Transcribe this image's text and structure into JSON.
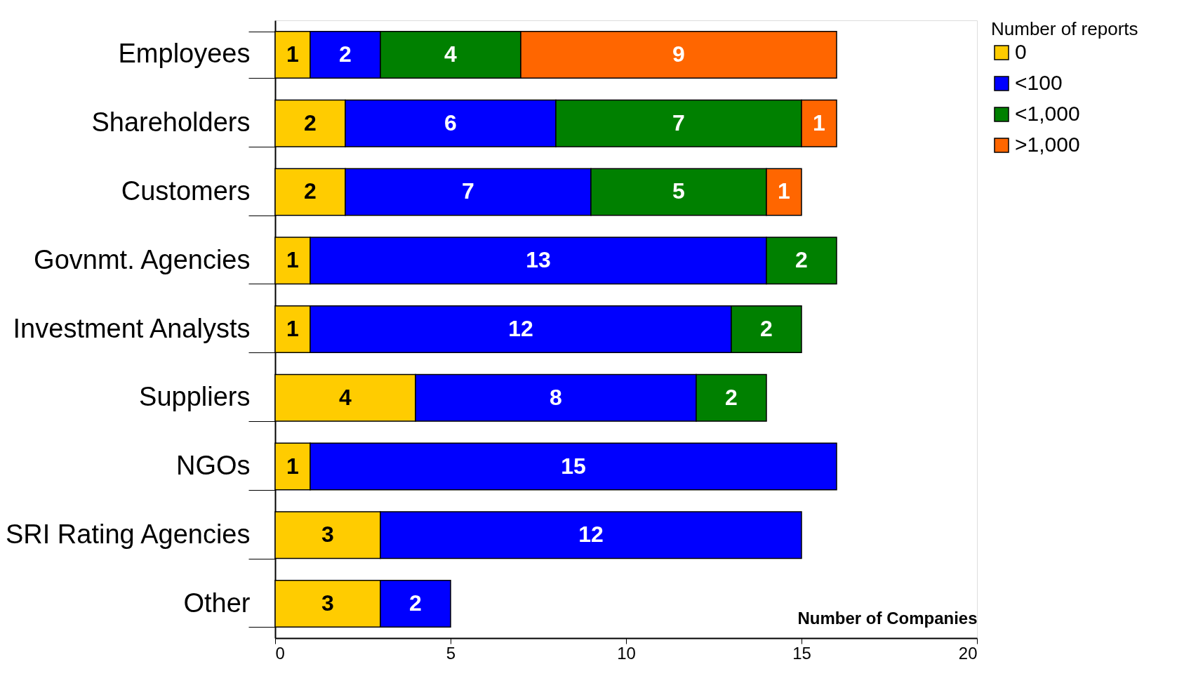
{
  "chart_data": {
    "type": "bar",
    "orientation": "horizontal",
    "stacked": true,
    "xlabel": "Number of Companies",
    "legend_title": "Number of reports",
    "legend": "right",
    "data_labels": true,
    "grid": false,
    "categories": [
      "Employees",
      "Shareholders",
      "Customers",
      "Govnmt. Agencies",
      "Investment Analysts",
      "Suppliers",
      "NGOs",
      "SRI Rating Agencies",
      "Other"
    ],
    "xlim": [
      0,
      20
    ],
    "xticks": [
      0,
      5,
      10,
      15,
      20
    ],
    "series": [
      {
        "name": "0",
        "color": "#ffcc00",
        "values": [
          1,
          2,
          2,
          1,
          1,
          4,
          1,
          3,
          3
        ]
      },
      {
        "name": "<100",
        "color": "#0000ff",
        "values": [
          2,
          6,
          7,
          13,
          12,
          8,
          15,
          12,
          2
        ]
      },
      {
        "name": "<1,000",
        "color": "#008000",
        "values": [
          4,
          7,
          5,
          2,
          2,
          2,
          null,
          null,
          null
        ]
      },
      {
        "name": ">1,000",
        "color": "#ff6600",
        "values": [
          9,
          1,
          1,
          null,
          null,
          null,
          null,
          null,
          null
        ]
      }
    ]
  }
}
